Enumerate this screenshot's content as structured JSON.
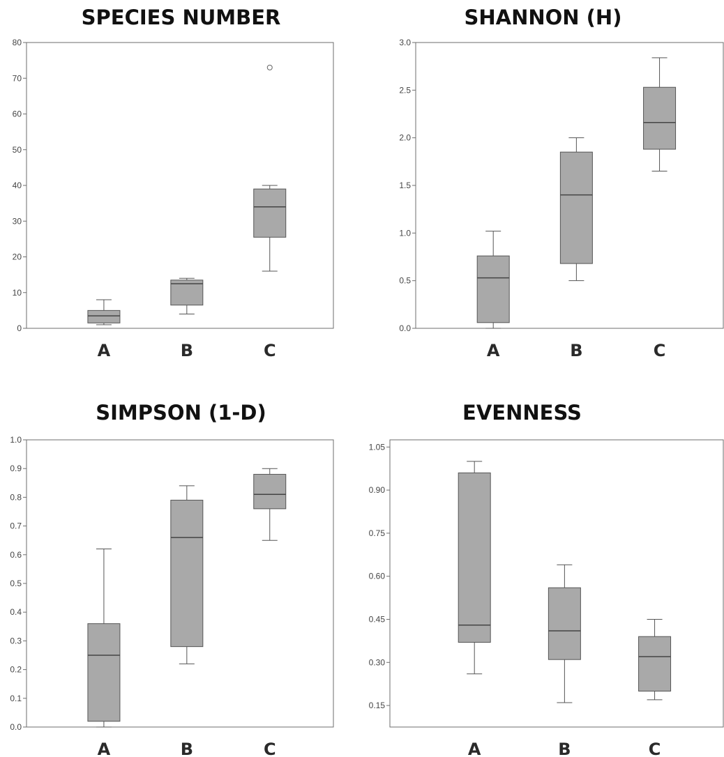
{
  "chart_data": [
    {
      "type": "boxplot",
      "title": "SPECIES NUMBER",
      "categories": [
        "A",
        "B",
        "C"
      ],
      "ylim": [
        0,
        80
      ],
      "yticks": [
        0,
        10,
        20,
        30,
        40,
        50,
        60,
        70,
        80
      ],
      "ytick_labels": [
        "0",
        "10",
        "20",
        "30",
        "40",
        "50",
        "60",
        "70",
        "80"
      ],
      "boxes": [
        {
          "category": "A",
          "whisker_low": 1,
          "q1": 1.5,
          "median": 3.5,
          "q3": 5,
          "whisker_high": 8,
          "outliers": []
        },
        {
          "category": "B",
          "whisker_low": 4,
          "q1": 6.5,
          "median": 12.5,
          "q3": 13.5,
          "whisker_high": 14,
          "outliers": []
        },
        {
          "category": "C",
          "whisker_low": 16,
          "q1": 25.5,
          "median": 34,
          "q3": 39,
          "whisker_high": 40,
          "outliers": [
            73
          ]
        }
      ],
      "box_color": "#a9a9a9"
    },
    {
      "type": "boxplot",
      "title": "SHANNON (H)",
      "categories": [
        "A",
        "B",
        "C"
      ],
      "ylim": [
        0,
        3.0
      ],
      "yticks": [
        0,
        0.5,
        1.0,
        1.5,
        2.0,
        2.5,
        3.0
      ],
      "ytick_labels": [
        "0.0",
        "0.5",
        "1.0",
        "1.5",
        "2.0",
        "2.5",
        "3.0"
      ],
      "boxes": [
        {
          "category": "A",
          "whisker_low": 0.0,
          "q1": 0.06,
          "median": 0.53,
          "q3": 0.76,
          "whisker_high": 1.02,
          "outliers": []
        },
        {
          "category": "B",
          "whisker_low": 0.5,
          "q1": 0.68,
          "median": 1.4,
          "q3": 1.85,
          "whisker_high": 2.0,
          "outliers": []
        },
        {
          "category": "C",
          "whisker_low": 1.65,
          "q1": 1.88,
          "median": 2.16,
          "q3": 2.53,
          "whisker_high": 2.84,
          "outliers": []
        }
      ],
      "box_color": "#a9a9a9"
    },
    {
      "type": "boxplot",
      "title": "SIMPSON (1-D)",
      "categories": [
        "A",
        "B",
        "C"
      ],
      "ylim": [
        0,
        1.0
      ],
      "yticks": [
        0,
        0.1,
        0.2,
        0.3,
        0.4,
        0.5,
        0.6,
        0.7,
        0.8,
        0.9,
        1.0
      ],
      "ytick_labels": [
        "0.0",
        "0.1",
        "0.2",
        "0.3",
        "0.4",
        "0.5",
        "0.6",
        "0.7",
        "0.8",
        "0.9",
        "1.0"
      ],
      "boxes": [
        {
          "category": "A",
          "whisker_low": 0.0,
          "q1": 0.02,
          "median": 0.25,
          "q3": 0.36,
          "whisker_high": 0.62,
          "outliers": []
        },
        {
          "category": "B",
          "whisker_low": 0.22,
          "q1": 0.28,
          "median": 0.66,
          "q3": 0.79,
          "whisker_high": 0.84,
          "outliers": []
        },
        {
          "category": "C",
          "whisker_low": 0.65,
          "q1": 0.76,
          "median": 0.81,
          "q3": 0.88,
          "whisker_high": 0.9,
          "outliers": []
        }
      ],
      "box_color": "#a9a9a9"
    },
    {
      "type": "boxplot",
      "title": "EVENNESS",
      "categories": [
        "A",
        "B",
        "C"
      ],
      "ylim": [
        0.075,
        1.075
      ],
      "yticks": [
        0.15,
        0.3,
        0.45,
        0.6,
        0.75,
        0.9,
        1.05
      ],
      "ytick_labels": [
        "0.15",
        "0.30",
        "0.45",
        "0.60",
        "0.75",
        "0.90",
        "1.05"
      ],
      "boxes": [
        {
          "category": "A",
          "whisker_low": 0.26,
          "q1": 0.37,
          "median": 0.43,
          "q3": 0.96,
          "whisker_high": 1.0,
          "outliers": []
        },
        {
          "category": "B",
          "whisker_low": 0.16,
          "q1": 0.31,
          "median": 0.41,
          "q3": 0.56,
          "whisker_high": 0.64,
          "outliers": []
        },
        {
          "category": "C",
          "whisker_low": 0.17,
          "q1": 0.2,
          "median": 0.32,
          "q3": 0.39,
          "whisker_high": 0.45,
          "outliers": []
        }
      ],
      "box_color": "#a9a9a9"
    }
  ]
}
